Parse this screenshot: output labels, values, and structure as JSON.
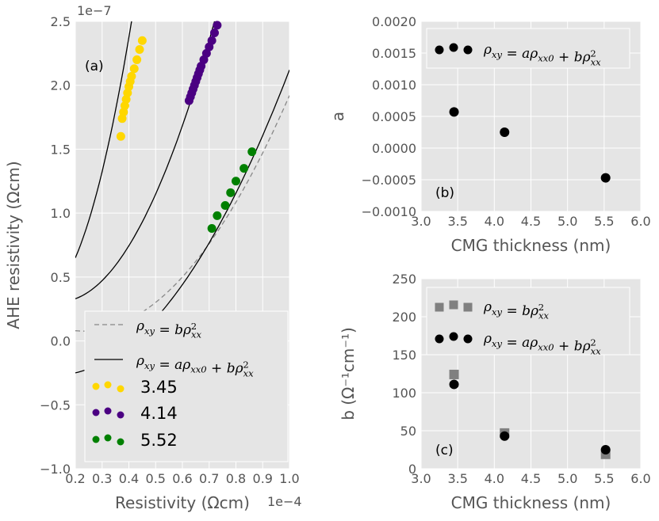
{
  "chart_data": [
    {
      "id": "a",
      "type": "scatter",
      "panel_label": "(a)",
      "xlabel": "Resistivity (Ωcm)",
      "ylabel": "AHE resistivity (Ωcm)",
      "x_offset_text": "1e−4",
      "y_offset_text": "1e−7",
      "xlim": [
        0.2,
        1.0
      ],
      "ylim": [
        -1.0,
        2.5
      ],
      "xticks": [
        0.2,
        0.3,
        0.4,
        0.5,
        0.6,
        0.7,
        0.8,
        0.9,
        1.0
      ],
      "xtick_labels": [
        "0.2",
        "0.3",
        "0.4",
        "0.5",
        "0.6",
        "0.7",
        "0.8",
        "0.9",
        "1.0"
      ],
      "yticks": [
        -1.0,
        -0.5,
        0.0,
        0.5,
        1.0,
        1.5,
        2.0,
        2.5
      ],
      "ytick_labels": [
        "−1.0",
        "−0.5",
        "0.0",
        "0.5",
        "1.0",
        "1.5",
        "2.0",
        "2.5"
      ],
      "grid": true,
      "legend_loc": "lower-right",
      "series": [
        {
          "name": "3.45",
          "color": "#ffd700",
          "x": [
            0.37,
            0.375,
            0.38,
            0.385,
            0.39,
            0.395,
            0.4,
            0.405,
            0.41,
            0.42,
            0.43,
            0.44,
            0.45
          ],
          "y": [
            1.6,
            1.74,
            1.79,
            1.84,
            1.89,
            1.94,
            1.99,
            2.03,
            2.07,
            2.13,
            2.2,
            2.28,
            2.35
          ]
        },
        {
          "name": "4.14",
          "color": "#4b0082",
          "x": [
            0.625,
            0.63,
            0.635,
            0.64,
            0.645,
            0.65,
            0.655,
            0.66,
            0.665,
            0.67,
            0.68,
            0.69,
            0.7,
            0.71,
            0.72,
            0.73
          ],
          "y": [
            1.88,
            1.91,
            1.94,
            1.97,
            2.0,
            2.03,
            2.06,
            2.09,
            2.12,
            2.15,
            2.2,
            2.25,
            2.3,
            2.35,
            2.41,
            2.47
          ]
        },
        {
          "name": "5.52",
          "color": "#008000",
          "x": [
            0.71,
            0.73,
            0.76,
            0.78,
            0.8,
            0.83,
            0.86
          ],
          "y": [
            0.88,
            0.98,
            1.06,
            1.16,
            1.25,
            1.35,
            1.48
          ]
        }
      ],
      "curves": [
        {
          "name": "ρxy = bρxx²",
          "style": "dashed",
          "color": "#888888",
          "samples": [
            [
              0.2,
              0.5,
              0.35,
              1.8,
              2.45
            ],
            [
              0.2,
              0.2,
              0.55,
              1.1,
              2.4
            ],
            [
              0.2,
              0.08,
              0.6,
              0.5,
              1.0,
              1.92
            ]
          ]
        },
        {
          "name": "ρxy = aρxx0 + bρxx²",
          "style": "solid",
          "color": "#000000",
          "samples": [
            [
              0.2,
              0.65,
              0.33,
              1.6,
              0.41,
              2.5
            ],
            [
              0.2,
              0.33,
              0.55,
              1.4,
              0.72,
              2.5
            ],
            [
              0.2,
              -0.25,
              0.55,
              0.3,
              1.0,
              2.12
            ]
          ]
        }
      ],
      "legend": [
        {
          "label": "ρxy = bρxx²",
          "kind": "line-dashed"
        },
        {
          "label": "ρxy = aρxx0 + bρxx²",
          "kind": "line-solid"
        },
        {
          "label": "3.45",
          "kind": "marker",
          "color": "#ffd700"
        },
        {
          "label": "4.14",
          "kind": "marker",
          "color": "#4b0082"
        },
        {
          "label": "5.52",
          "kind": "marker",
          "color": "#008000"
        }
      ]
    },
    {
      "id": "b",
      "type": "scatter",
      "panel_label": "(b)",
      "xlabel": "CMG thickness (nm)",
      "ylabel": "a",
      "xlim": [
        3.0,
        6.0
      ],
      "ylim": [
        -0.001,
        0.002
      ],
      "xticks": [
        3.0,
        3.5,
        4.0,
        4.5,
        5.0,
        5.5,
        6.0
      ],
      "xtick_labels": [
        "3.0",
        "3.5",
        "4.0",
        "4.5",
        "5.0",
        "5.5",
        "6.0"
      ],
      "yticks": [
        -0.001,
        -0.0005,
        0.0,
        0.0005,
        0.001,
        0.0015,
        0.002
      ],
      "ytick_labels": [
        "−0.0010",
        "−0.0005",
        "0.0000",
        "0.0005",
        "0.0010",
        "0.0015",
        "0.0020"
      ],
      "grid": true,
      "legend_loc": "top",
      "series": [
        {
          "name": "ρxy = aρxx0 + bρxx²",
          "marker": "circle",
          "color": "#000000",
          "x": [
            3.45,
            4.14,
            5.52
          ],
          "y": [
            0.00057,
            0.00025,
            -0.00047
          ]
        }
      ],
      "legend": [
        {
          "label": "ρxy = aρxx0 + bρxx²",
          "kind": "marker-circle-triple",
          "color": "#000000"
        }
      ]
    },
    {
      "id": "c",
      "type": "scatter",
      "panel_label": "(c)",
      "xlabel": "CMG thickness (nm)",
      "ylabel": "b (Ω⁻¹cm⁻¹)",
      "xlim": [
        3.0,
        6.0
      ],
      "ylim": [
        0,
        250
      ],
      "xticks": [
        3.0,
        3.5,
        4.0,
        4.5,
        5.0,
        5.5,
        6.0
      ],
      "xtick_labels": [
        "3.0",
        "3.5",
        "4.0",
        "4.5",
        "5.0",
        "5.5",
        "6.0"
      ],
      "yticks": [
        0,
        50,
        100,
        150,
        200,
        250
      ],
      "ytick_labels": [
        "0",
        "50",
        "100",
        "150",
        "200",
        "250"
      ],
      "grid": true,
      "legend_loc": "top",
      "series": [
        {
          "name": "ρxy = bρxx²",
          "marker": "square",
          "color": "#808080",
          "x": [
            3.45,
            4.14,
            5.52
          ],
          "y": [
            124,
            47,
            19
          ]
        },
        {
          "name": "ρxy = aρxx0 + bρxx²",
          "marker": "circle",
          "color": "#000000",
          "x": [
            3.45,
            4.14,
            5.52
          ],
          "y": [
            111,
            43,
            25
          ]
        }
      ],
      "legend": [
        {
          "label": "ρxy = bρxx²",
          "kind": "marker-square-triple",
          "color": "#808080"
        },
        {
          "label": "ρxy = aρxx0 + bρxx²",
          "kind": "marker-circle-triple",
          "color": "#000000"
        }
      ]
    }
  ]
}
